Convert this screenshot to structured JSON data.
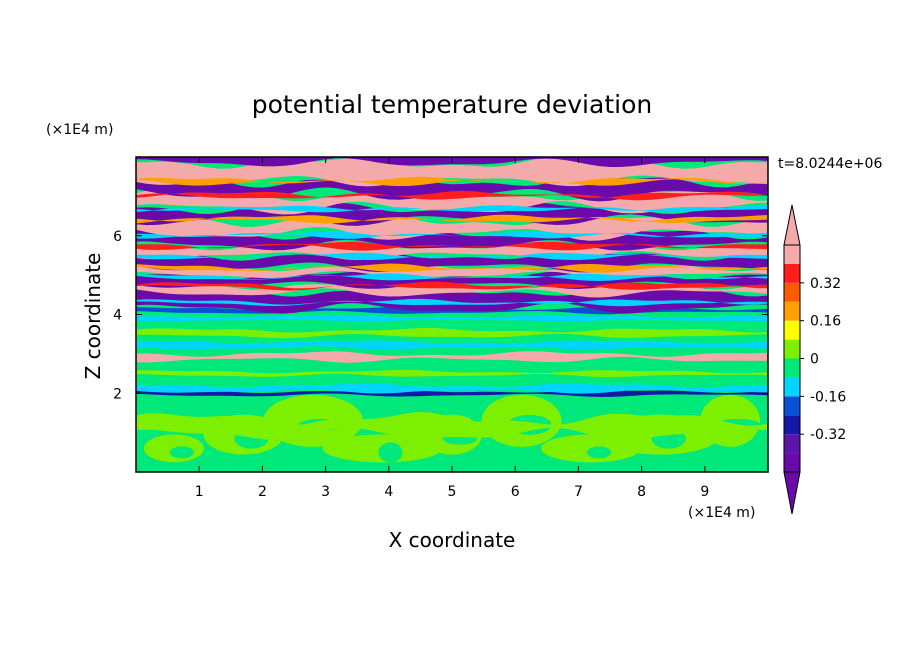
{
  "chart_data": {
    "type": "heatmap",
    "title": "potential temperature deviation",
    "xlabel": "X coordinate",
    "ylabel": "Z coordinate",
    "x_unit": "(×1E4 m)",
    "y_unit": "(×1E4 m)",
    "time_label": "t=8.0244e+06",
    "xlim": [
      0,
      10
    ],
    "ylim": [
      0,
      8
    ],
    "x_ticks": [
      "1",
      "2",
      "3",
      "4",
      "5",
      "6",
      "7",
      "8",
      "9"
    ],
    "y_ticks": [
      "2",
      "4",
      "6"
    ],
    "colorbar": {
      "levels": [
        -0.48,
        -0.4,
        -0.32,
        -0.24,
        -0.16,
        -0.08,
        0,
        0.08,
        0.16,
        0.24,
        0.32,
        0.4,
        0.48
      ],
      "colors": [
        "#6a0aab",
        "#5a16a8",
        "#1616a8",
        "#0a50d6",
        "#00d4ff",
        "#00e87a",
        "#7cf000",
        "#ffff00",
        "#ffa000",
        "#ff5a00",
        "#ff1e1e",
        "#f4aaaa"
      ],
      "tick_labels": [
        "0.32",
        "0.16",
        "0",
        "-0.16",
        "-0.32"
      ],
      "tick_values": [
        0.32,
        0.16,
        0,
        -0.16,
        -0.32
      ]
    },
    "layers": [
      {
        "z": [
          7.3,
          8.0
        ],
        "dominant": "pink"
      },
      {
        "z": [
          6.4,
          7.3
        ],
        "dominant": "purple-pink"
      },
      {
        "z": [
          5.2,
          6.4
        ],
        "dominant": "pink-purple"
      },
      {
        "z": [
          4.1,
          5.2
        ],
        "dominant": "purple-pink"
      },
      {
        "z": [
          3.5,
          4.1
        ],
        "dominant": "green-cyan"
      },
      {
        "z": [
          2.0,
          3.5
        ],
        "dominant": "cyan-green"
      },
      {
        "z": [
          0.0,
          2.0
        ],
        "dominant": "green-lime"
      }
    ]
  }
}
